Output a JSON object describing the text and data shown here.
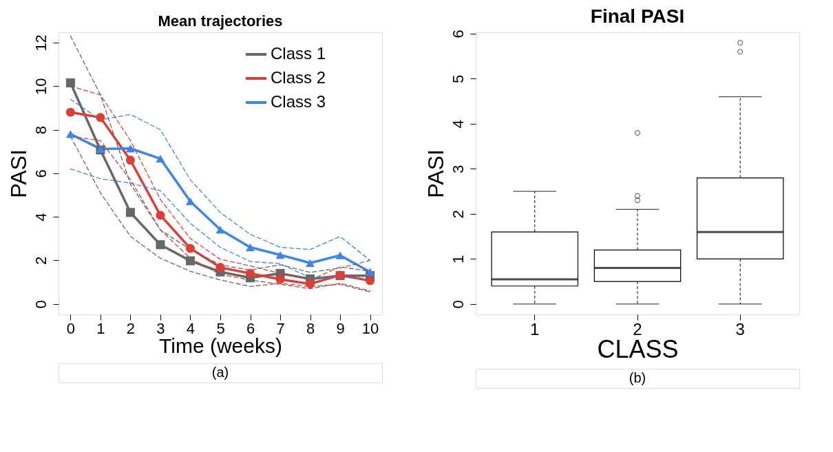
{
  "chart_data": [
    {
      "type": "line",
      "title": "Mean trajectories",
      "xlabel": "Time (weeks)",
      "ylabel": "PASI",
      "x": [
        0,
        1,
        2,
        3,
        4,
        5,
        6,
        7,
        8,
        9,
        10
      ],
      "xlim": [
        -0.4,
        10.4
      ],
      "xticks": [
        0,
        1,
        2,
        3,
        4,
        5,
        6,
        7,
        8,
        9,
        10
      ],
      "ylim": [
        -0.48,
        12.47
      ],
      "yticks": [
        0,
        2,
        4,
        6,
        8,
        10,
        12
      ],
      "grid": false,
      "legend": "top right",
      "line_style": "solid",
      "series": [
        {
          "name": "Class 1",
          "color": "#676767",
          "marker": "square",
          "values": [
            10.15,
            7.07,
            4.2,
            2.72,
            1.98,
            1.47,
            1.2,
            1.4,
            1.15,
            1.3,
            1.3
          ]
        },
        {
          "name": "Class 2",
          "color": "#dd3f36",
          "marker": "circle",
          "values": [
            8.8,
            8.56,
            6.6,
            4.07,
            2.55,
            1.68,
            1.4,
            1.13,
            0.92,
            1.32,
            1.07
          ]
        },
        {
          "name": "Class 3",
          "color": "#3d86e8",
          "marker": "triangle",
          "values": [
            7.8,
            7.12,
            7.14,
            6.67,
            4.71,
            3.41,
            2.6,
            2.25,
            1.88,
            2.23,
            1.47
          ]
        },
        {
          "color": "#676767",
          "line_style": "dashed",
          "marker": "none",
          "values": [
            12.3,
            9.6,
            5.5,
            3.4,
            2.5,
            1.8,
            1.55,
            1.8,
            1.45,
            1.65,
            2.0
          ]
        },
        {
          "color": "#676767",
          "line_style": "dashed",
          "marker": "none",
          "values": [
            7.7,
            5.1,
            3.1,
            2.1,
            1.5,
            1.1,
            0.8,
            0.95,
            0.8,
            0.9,
            0.55
          ]
        },
        {
          "color": "#dd3f36",
          "line_style": "dashed",
          "marker": "none",
          "values": [
            10.0,
            9.6,
            7.5,
            4.8,
            3.0,
            2.05,
            1.75,
            1.4,
            1.1,
            1.7,
            1.5
          ]
        },
        {
          "color": "#dd3f36",
          "line_style": "dashed",
          "marker": "none",
          "values": [
            7.7,
            7.5,
            5.7,
            3.4,
            2.1,
            1.35,
            1.1,
            0.9,
            0.7,
            0.95,
            0.6
          ]
        },
        {
          "color": "#3d86e8",
          "line_style": "dashed",
          "marker": "none",
          "values": [
            9.4,
            8.45,
            8.7,
            8.0,
            5.7,
            4.2,
            3.2,
            2.6,
            2.5,
            3.1,
            2.0
          ]
        },
        {
          "color": "#3d86e8",
          "line_style": "dashed",
          "marker": "none",
          "values": [
            6.2,
            5.75,
            5.55,
            5.2,
            3.7,
            2.6,
            1.95,
            1.85,
            1.2,
            1.25,
            1.1
          ]
        }
      ],
      "annotations": [
        "(a)"
      ]
    },
    {
      "type": "box",
      "title": "Final PASI",
      "xlabel": "CLASS",
      "ylabel": "PASI",
      "categories": [
        "1",
        "2",
        "3"
      ],
      "ylim": [
        -0.23,
        6.03
      ],
      "yticks": [
        0,
        1,
        2,
        3,
        4,
        5,
        6
      ],
      "grid": false,
      "boxes": [
        {
          "low": 0,
          "q1": 0.4,
          "median": 0.55,
          "q3": 1.6,
          "high": 2.5
        },
        {
          "low": 0,
          "q1": 0.5,
          "median": 0.8,
          "q3": 1.2,
          "high": 2.1,
          "outliers": [
            2.3,
            2.4,
            3.8
          ]
        },
        {
          "low": 0,
          "q1": 1.0,
          "median": 1.6,
          "q3": 2.8,
          "high": 4.6,
          "outliers": [
            5.6,
            5.8
          ]
        }
      ],
      "annotations": [
        "(b)"
      ]
    }
  ]
}
